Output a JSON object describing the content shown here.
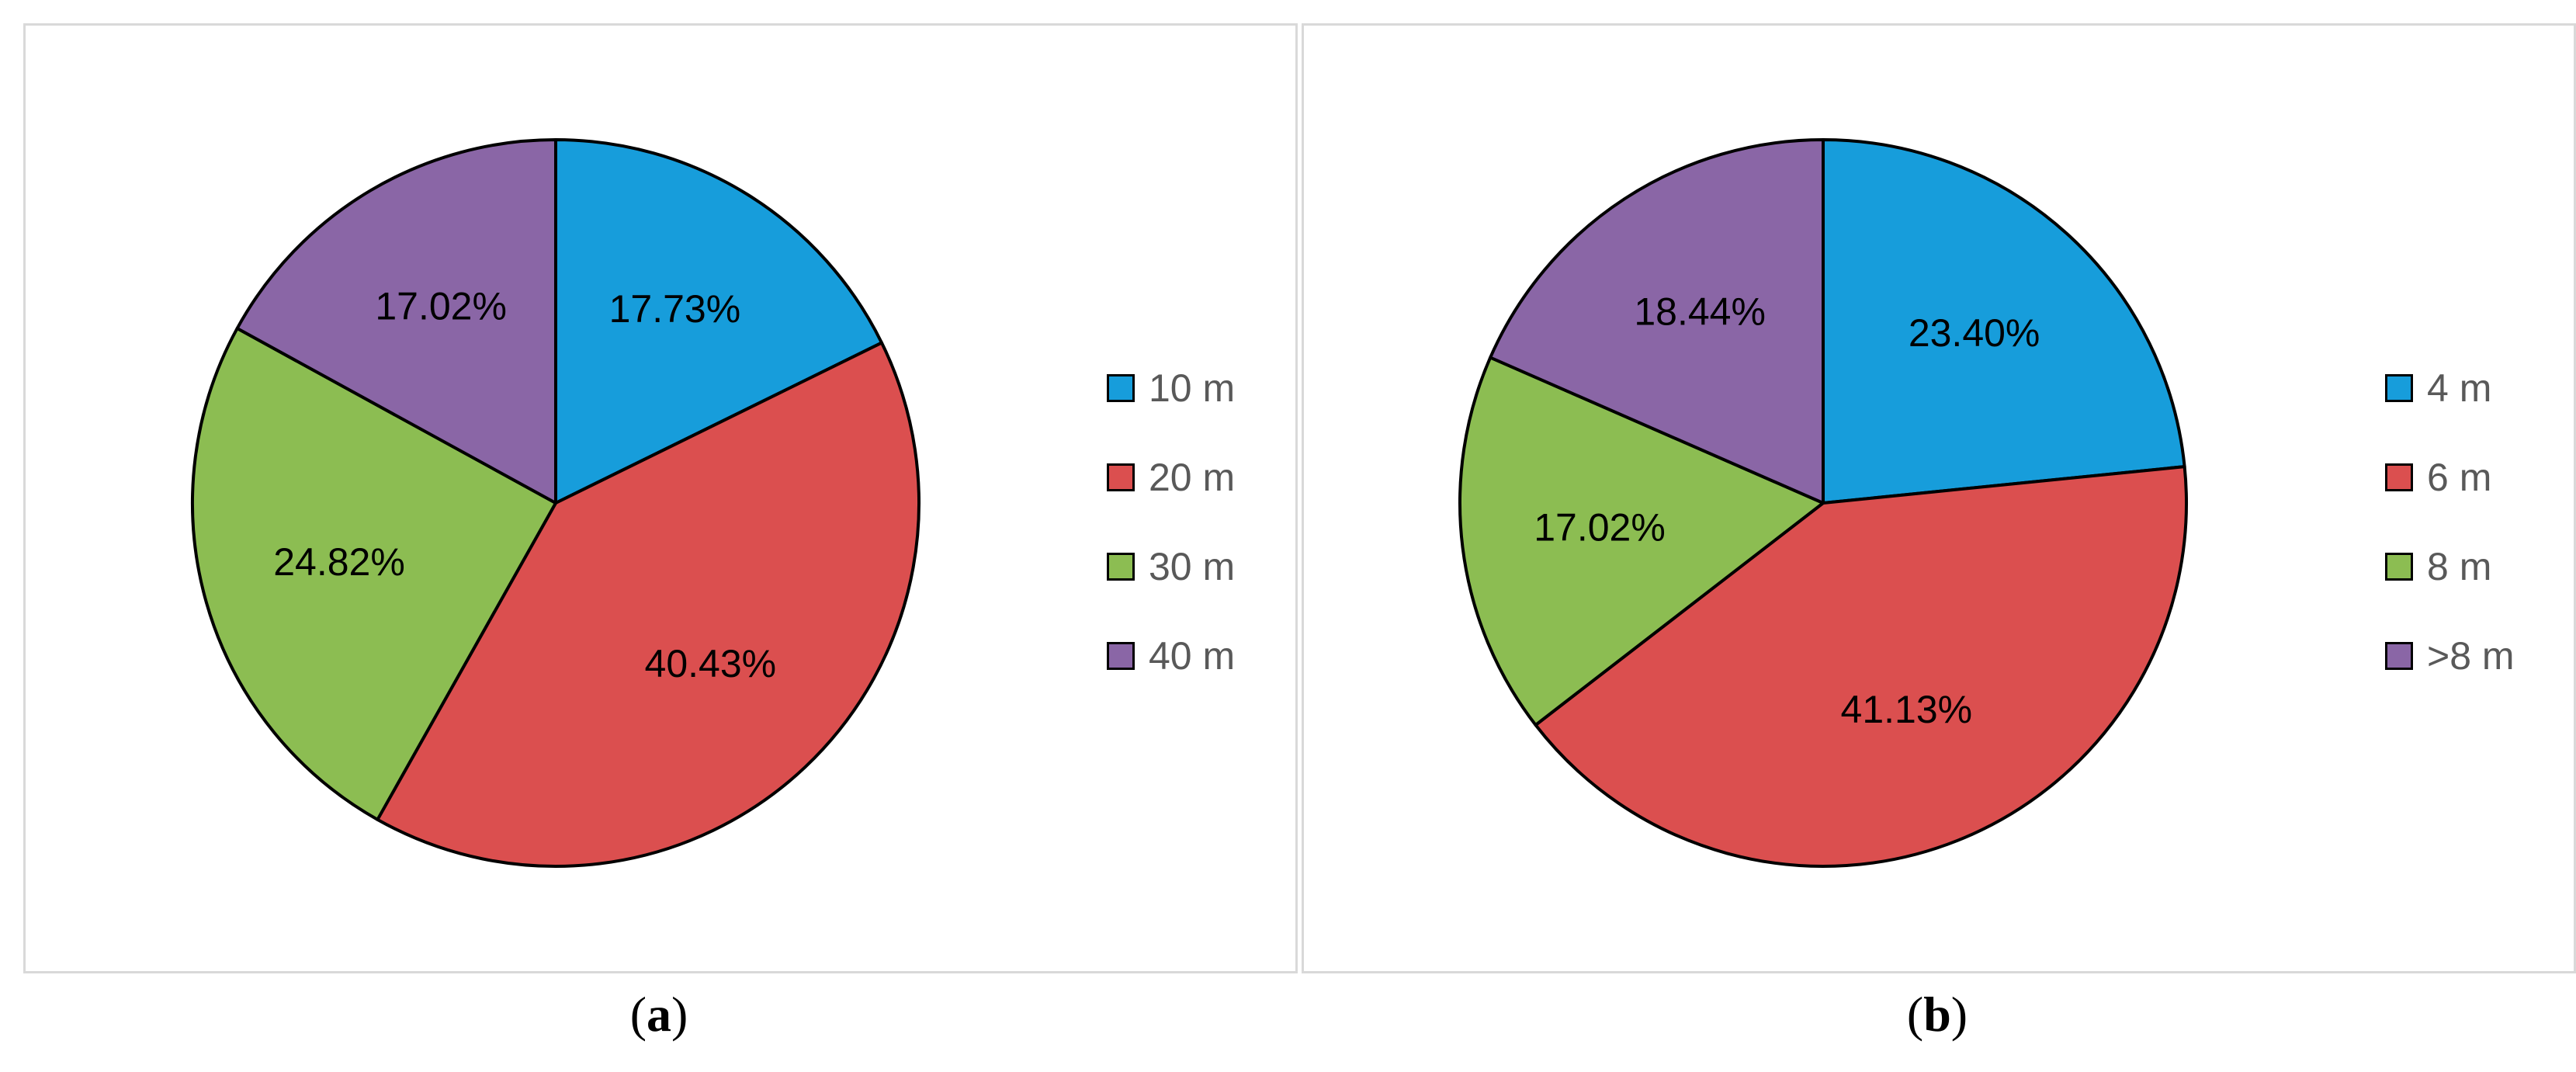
{
  "chart_data": [
    {
      "type": "pie",
      "panel_label": "a",
      "categories": [
        "10 m",
        "20 m",
        "30 m",
        "40 m"
      ],
      "values": [
        17.73,
        40.43,
        24.82,
        17.02
      ],
      "data_labels": [
        "17.73%",
        "40.43%",
        "24.82%",
        "17.02%"
      ],
      "colors": [
        "#179ddb",
        "#db4f4f",
        "#8cbd52",
        "#8a66a6"
      ],
      "legend_position": "right",
      "start_angle": "12 o'clock, clockwise"
    },
    {
      "type": "pie",
      "panel_label": "b",
      "categories": [
        "4 m",
        "6 m",
        "8 m",
        ">8 m"
      ],
      "values": [
        23.4,
        41.13,
        17.02,
        18.44
      ],
      "data_labels": [
        "23.40%",
        "41.13%",
        "17.02%",
        "18.44%"
      ],
      "colors": [
        "#179ddb",
        "#db4f4f",
        "#8cbd52",
        "#8a66a6"
      ],
      "legend_position": "right",
      "start_angle": "12 o'clock, clockwise"
    }
  ]
}
